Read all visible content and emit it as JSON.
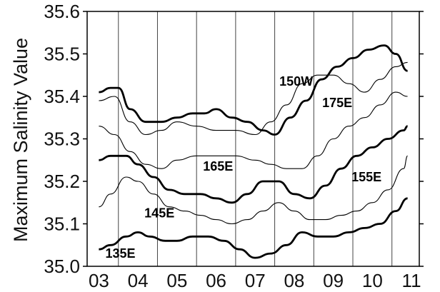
{
  "chart_data": {
    "type": "line",
    "ylabel": "Maximum Salinity Value",
    "xlabel": "",
    "x_ticks": [
      "03",
      "04",
      "05",
      "06",
      "07",
      "08",
      "09",
      "10",
      "11"
    ],
    "y_ticks": [
      "35.0",
      "35.1",
      "35.2",
      "35.3",
      "35.4",
      "35.5",
      "35.6"
    ],
    "xlim": [
      2.7,
      11.2
    ],
    "ylim": [
      35.0,
      35.6
    ],
    "grid_x": true,
    "grid_y": false,
    "series": [
      {
        "name": "150W",
        "weight": "bold",
        "x": [
          3.0,
          3.3,
          3.5,
          3.8,
          4.2,
          4.6,
          5.0,
          5.4,
          5.7,
          6.0,
          6.4,
          6.8,
          7.2,
          7.5,
          7.9,
          8.3,
          8.7,
          9.1,
          9.5,
          9.9,
          10.3,
          10.6,
          10.9
        ],
        "y": [
          35.41,
          35.42,
          35.42,
          35.37,
          35.34,
          35.34,
          35.35,
          35.36,
          35.36,
          35.37,
          35.35,
          35.34,
          35.32,
          35.31,
          35.35,
          35.39,
          35.44,
          35.47,
          35.49,
          35.51,
          35.52,
          35.5,
          35.46
        ]
      },
      {
        "name": "175E",
        "weight": "thin",
        "x": [
          3.0,
          3.4,
          3.8,
          4.2,
          4.6,
          5.0,
          5.5,
          6.0,
          6.5,
          7.0,
          7.4,
          7.8,
          8.2,
          8.6,
          9.0,
          9.4,
          9.8,
          10.2,
          10.6,
          10.9
        ],
        "y": [
          35.39,
          35.4,
          35.34,
          35.31,
          35.32,
          35.34,
          35.33,
          35.32,
          35.32,
          35.31,
          35.34,
          35.38,
          35.43,
          35.45,
          35.45,
          35.43,
          35.41,
          35.44,
          35.47,
          35.48
        ]
      },
      {
        "name": "165E",
        "weight": "thin",
        "x": [
          3.0,
          3.4,
          3.8,
          4.2,
          4.6,
          5.0,
          5.5,
          6.0,
          6.5,
          7.0,
          7.4,
          7.8,
          8.2,
          8.6,
          9.0,
          9.4,
          9.8,
          10.2,
          10.6,
          10.9
        ],
        "y": [
          35.33,
          35.31,
          35.27,
          35.24,
          35.23,
          35.25,
          35.26,
          35.26,
          35.26,
          35.25,
          35.24,
          35.23,
          35.23,
          35.26,
          35.3,
          35.33,
          35.35,
          35.38,
          35.41,
          35.4
        ]
      },
      {
        "name": "155E",
        "weight": "bold",
        "x": [
          3.0,
          3.3,
          3.7,
          4.0,
          4.4,
          4.8,
          5.2,
          5.6,
          6.0,
          6.4,
          6.8,
          7.2,
          7.6,
          8.0,
          8.4,
          8.8,
          9.2,
          9.6,
          10.0,
          10.4,
          10.8,
          10.9
        ],
        "y": [
          35.25,
          35.26,
          35.26,
          35.24,
          35.21,
          35.18,
          35.17,
          35.17,
          35.16,
          35.15,
          35.17,
          35.2,
          35.2,
          35.17,
          35.16,
          35.19,
          35.23,
          35.26,
          35.28,
          35.3,
          35.32,
          35.33
        ]
      },
      {
        "name": "145E",
        "weight": "thin",
        "x": [
          3.0,
          3.3,
          3.7,
          4.0,
          4.4,
          4.8,
          5.2,
          5.6,
          6.0,
          6.4,
          6.8,
          7.2,
          7.6,
          8.0,
          8.4,
          8.8,
          9.2,
          9.6,
          10.0,
          10.4,
          10.8,
          10.9
        ],
        "y": [
          35.14,
          35.17,
          35.21,
          35.2,
          35.17,
          35.14,
          35.13,
          35.12,
          35.11,
          35.1,
          35.11,
          35.13,
          35.15,
          35.13,
          35.11,
          35.11,
          35.12,
          35.13,
          35.15,
          35.18,
          35.23,
          35.26
        ]
      },
      {
        "name": "135E",
        "weight": "bold",
        "x": [
          3.0,
          3.3,
          3.7,
          4.0,
          4.3,
          4.7,
          5.0,
          5.4,
          5.8,
          6.2,
          6.6,
          7.0,
          7.4,
          7.8,
          8.2,
          8.6,
          9.0,
          9.4,
          9.8,
          10.2,
          10.6,
          10.9
        ],
        "y": [
          35.04,
          35.05,
          35.07,
          35.08,
          35.07,
          35.06,
          35.06,
          35.07,
          35.07,
          35.06,
          35.04,
          35.02,
          35.03,
          35.05,
          35.08,
          35.07,
          35.07,
          35.08,
          35.09,
          35.1,
          35.13,
          35.16
        ]
      }
    ],
    "annotations": [
      {
        "text": "150W",
        "x": 8.05,
        "y": 35.425
      },
      {
        "text": "175E",
        "x": 9.1,
        "y": 35.375
      },
      {
        "text": "165E",
        "x": 6.05,
        "y": 35.225
      },
      {
        "text": "155E",
        "x": 9.85,
        "y": 35.2
      },
      {
        "text": "145E",
        "x": 4.55,
        "y": 35.115
      },
      {
        "text": "135E",
        "x": 3.55,
        "y": 35.02
      }
    ]
  }
}
